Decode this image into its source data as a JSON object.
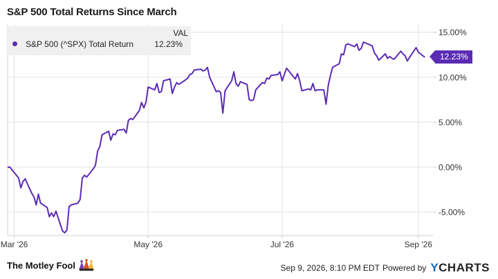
{
  "chart_data": {
    "type": "line",
    "title": "S&P 500 Total Returns Since March",
    "legend": {
      "header": "VAL",
      "placement": "top-left"
    },
    "series": [
      {
        "name": "S&P 500 (^SPX) Total Return",
        "color": "#5b2bb4",
        "last_value_label": "12.23%",
        "points": [
          [
            "2026-02-26",
            0.0
          ],
          [
            "2026-02-27",
            0.0
          ],
          [
            "2026-03-02",
            -0.9
          ],
          [
            "2026-03-03",
            -1.2
          ],
          [
            "2026-03-04",
            -2.3
          ],
          [
            "2026-03-05",
            -1.6
          ],
          [
            "2026-03-06",
            -1.3
          ],
          [
            "2026-03-09",
            -2.9
          ],
          [
            "2026-03-10",
            -3.3
          ],
          [
            "2026-03-11",
            -4.2
          ],
          [
            "2026-03-12",
            -3.0
          ],
          [
            "2026-03-13",
            -4.0
          ],
          [
            "2026-03-16",
            -4.5
          ],
          [
            "2026-03-17",
            -5.5
          ],
          [
            "2026-03-18",
            -5.1
          ],
          [
            "2026-03-19",
            -5.5
          ],
          [
            "2026-03-20",
            -4.9
          ],
          [
            "2026-03-23",
            -7.1
          ],
          [
            "2026-03-24",
            -7.3
          ],
          [
            "2026-03-25",
            -7.0
          ],
          [
            "2026-03-26",
            -4.4
          ],
          [
            "2026-03-27",
            -4.2
          ],
          [
            "2026-03-30",
            -4.0
          ],
          [
            "2026-03-31",
            -3.6
          ],
          [
            "2026-04-01",
            -1.2
          ],
          [
            "2026-04-02",
            -0.9
          ],
          [
            "2026-04-03",
            -1.1
          ],
          [
            "2026-04-06",
            -0.2
          ],
          [
            "2026-04-07",
            0.2
          ],
          [
            "2026-04-08",
            1.8
          ],
          [
            "2026-04-09",
            2.3
          ],
          [
            "2026-04-10",
            3.6
          ],
          [
            "2026-04-13",
            4.0
          ],
          [
            "2026-04-14",
            3.0
          ],
          [
            "2026-04-15",
            3.7
          ],
          [
            "2026-04-16",
            3.6
          ],
          [
            "2026-04-17",
            4.1
          ],
          [
            "2026-04-20",
            4.2
          ],
          [
            "2026-04-21",
            3.8
          ],
          [
            "2026-04-22",
            5.2
          ],
          [
            "2026-04-23",
            5.4
          ],
          [
            "2026-04-24",
            5.3
          ],
          [
            "2026-04-27",
            6.3
          ],
          [
            "2026-04-28",
            7.2
          ],
          [
            "2026-04-29",
            6.6
          ],
          [
            "2026-04-30",
            7.2
          ],
          [
            "2026-05-01",
            8.9
          ],
          [
            "2026-05-04",
            8.6
          ],
          [
            "2026-05-05",
            9.3
          ],
          [
            "2026-05-06",
            8.3
          ],
          [
            "2026-05-07",
            8.4
          ],
          [
            "2026-05-08",
            9.6
          ],
          [
            "2026-05-11",
            9.8
          ],
          [
            "2026-05-12",
            8.2
          ],
          [
            "2026-05-13",
            8.9
          ],
          [
            "2026-05-14",
            9.4
          ],
          [
            "2026-05-15",
            9.2
          ],
          [
            "2026-05-18",
            9.7
          ],
          [
            "2026-05-19",
            9.9
          ],
          [
            "2026-05-20",
            10.3
          ],
          [
            "2026-05-21",
            10.4
          ],
          [
            "2026-05-22",
            10.8
          ],
          [
            "2026-05-25",
            10.9
          ],
          [
            "2026-05-26",
            10.7
          ],
          [
            "2026-05-27",
            10.8
          ],
          [
            "2026-05-28",
            11.1
          ],
          [
            "2026-05-29",
            10.0
          ],
          [
            "2026-06-01",
            8.4
          ],
          [
            "2026-06-02",
            8.5
          ],
          [
            "2026-06-03",
            8.3
          ],
          [
            "2026-06-04",
            6.0
          ],
          [
            "2026-06-05",
            8.5
          ],
          [
            "2026-06-08",
            9.6
          ],
          [
            "2026-06-09",
            10.6
          ],
          [
            "2026-06-10",
            9.3
          ],
          [
            "2026-06-11",
            9.0
          ],
          [
            "2026-06-12",
            9.5
          ],
          [
            "2026-06-15",
            9.2
          ],
          [
            "2026-06-16",
            7.5
          ],
          [
            "2026-06-17",
            7.4
          ],
          [
            "2026-06-18",
            7.5
          ],
          [
            "2026-06-19",
            8.6
          ],
          [
            "2026-06-22",
            9.4
          ],
          [
            "2026-06-23",
            9.3
          ],
          [
            "2026-06-24",
            9.9
          ],
          [
            "2026-06-25",
            9.8
          ],
          [
            "2026-06-26",
            10.2
          ],
          [
            "2026-06-29",
            10.3
          ],
          [
            "2026-06-30",
            10.6
          ],
          [
            "2026-07-01",
            9.6
          ],
          [
            "2026-07-02",
            10.3
          ],
          [
            "2026-07-03",
            11.0
          ],
          [
            "2026-07-06",
            10.1
          ],
          [
            "2026-07-07",
            9.8
          ],
          [
            "2026-07-08",
            10.4
          ],
          [
            "2026-07-09",
            9.6
          ],
          [
            "2026-07-10",
            8.5
          ],
          [
            "2026-07-13",
            8.7
          ],
          [
            "2026-07-14",
            8.6
          ],
          [
            "2026-07-15",
            9.3
          ],
          [
            "2026-07-16",
            8.5
          ],
          [
            "2026-07-17",
            8.6
          ],
          [
            "2026-07-20",
            8.6
          ],
          [
            "2026-07-21",
            7.0
          ],
          [
            "2026-07-22",
            9.1
          ],
          [
            "2026-07-23",
            10.2
          ],
          [
            "2026-07-24",
            11.1
          ],
          [
            "2026-07-27",
            11.5
          ],
          [
            "2026-07-28",
            12.6
          ],
          [
            "2026-07-29",
            12.5
          ],
          [
            "2026-07-30",
            13.6
          ],
          [
            "2026-07-31",
            13.7
          ],
          [
            "2026-08-03",
            13.4
          ],
          [
            "2026-08-04",
            13.7
          ],
          [
            "2026-08-05",
            13.0
          ],
          [
            "2026-08-06",
            13.2
          ],
          [
            "2026-08-07",
            13.9
          ],
          [
            "2026-08-10",
            13.6
          ],
          [
            "2026-08-11",
            13.5
          ],
          [
            "2026-08-12",
            12.7
          ],
          [
            "2026-08-13",
            12.4
          ],
          [
            "2026-08-14",
            11.9
          ],
          [
            "2026-08-17",
            12.6
          ],
          [
            "2026-08-18",
            12.1
          ],
          [
            "2026-08-19",
            12.3
          ],
          [
            "2026-08-20",
            12.1
          ],
          [
            "2026-08-21",
            12.0
          ],
          [
            "2026-08-24",
            12.9
          ],
          [
            "2026-08-25",
            12.6
          ],
          [
            "2026-08-26",
            12.4
          ],
          [
            "2026-08-27",
            11.8
          ],
          [
            "2026-08-28",
            12.2
          ],
          [
            "2026-08-31",
            13.3
          ],
          [
            "2026-09-01",
            12.8
          ],
          [
            "2026-09-02",
            12.6
          ],
          [
            "2026-09-03",
            12.4
          ],
          [
            "2026-09-04",
            12.23
          ]
        ]
      }
    ],
    "x_range": [
      "2026-02-26",
      "2026-09-08"
    ],
    "y_range": [
      -7.6,
      15.9
    ],
    "x_ticks": [
      {
        "date": "2026-03-01",
        "label": "Mar '26"
      },
      {
        "date": "2026-05-01",
        "label": "May '26"
      },
      {
        "date": "2026-07-01",
        "label": "Jul '26"
      },
      {
        "date": "2026-09-01",
        "label": "Sep '26"
      }
    ],
    "y_ticks": [
      {
        "value": 15,
        "label": "15.00%"
      },
      {
        "value": 10,
        "label": "10.00%"
      },
      {
        "value": 5,
        "label": "5.00%"
      },
      {
        "value": 0,
        "label": "0.00%"
      },
      {
        "value": -5,
        "label": "-5.00%"
      }
    ],
    "grid": true
  },
  "footer": {
    "brand": "The Motley Fool",
    "timestamp": "Sep 9, 2026, 8:10 PM EDT",
    "powered_by": "Powered by",
    "ycharts_y": "Y",
    "ycharts_rest": "CHARTS"
  }
}
